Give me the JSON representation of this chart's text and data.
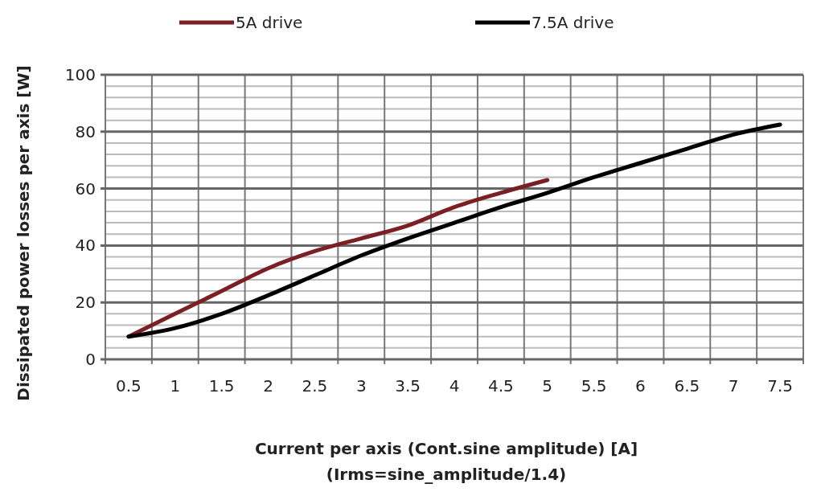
{
  "chart_data": {
    "type": "line",
    "xlabel": "Current per axis (Cont.sine amplitude) [A]\n(Irms=sine_amplitude/1.4)",
    "ylabel": "Dissipated power losses per axis [W]",
    "categories": [
      "0.5",
      "1",
      "1.5",
      "2",
      "2.5",
      "3",
      "3.5",
      "4",
      "4.5",
      "5",
      "5.5",
      "6",
      "6.5",
      "7",
      "7.5"
    ],
    "series": [
      {
        "name": "5A drive",
        "color": "#7b1f24",
        "values": [
          8,
          16,
          24,
          32,
          38,
          42.5,
          47,
          53.5,
          58.5,
          63,
          null,
          null,
          null,
          null,
          null
        ]
      },
      {
        "name": "7.5A drive",
        "color": "#000000",
        "values": [
          8,
          11,
          16,
          22.5,
          29.5,
          36.5,
          42.5,
          48,
          53.5,
          58.5,
          64,
          69,
          74,
          79,
          82.5
        ]
      }
    ],
    "ylim": [
      0,
      100
    ],
    "yticks": [
      0,
      20,
      40,
      60,
      80,
      100
    ],
    "grid": true,
    "legend": "top",
    "marker": "none",
    "line_style": "solid"
  }
}
